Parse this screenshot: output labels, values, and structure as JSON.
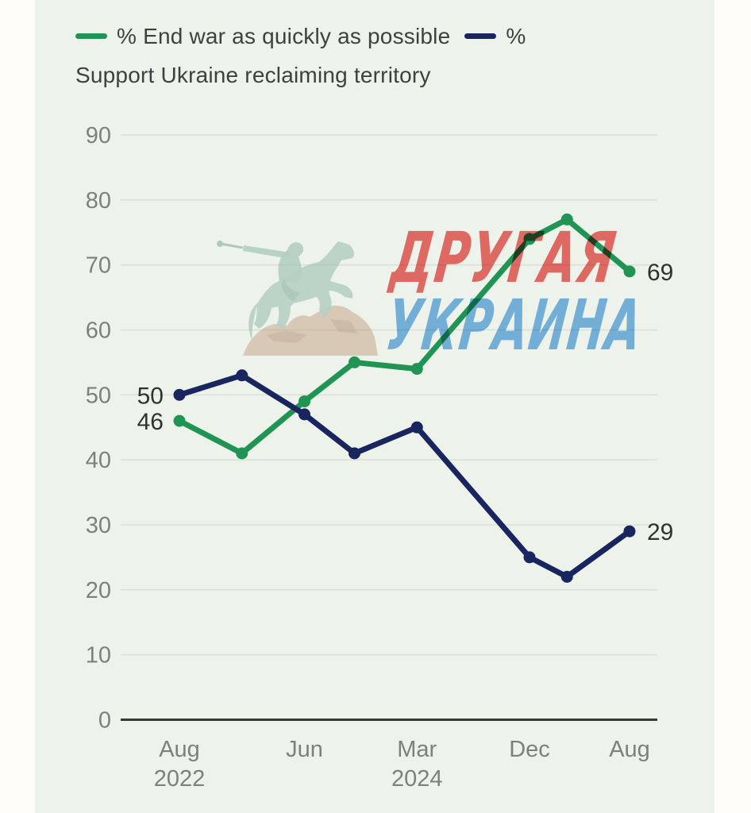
{
  "legend": {
    "series1_label": "% End war as quickly as possible",
    "series2_label": "% Support Ukraine reclaiming territory"
  },
  "watermark": {
    "line1": "ДРУГАЯ",
    "line2": "УКРАИНА",
    "line1_color": "#ef6e6b",
    "line2_color": "#7cb7ea"
  },
  "statue": {
    "name": "bohdan-khmelnytsky-monument-watermark"
  },
  "colors": {
    "page_bg": "#fffdf7",
    "card_bg": "#edf3eb",
    "grid": "#dce1d7",
    "axis": "#343a3c",
    "tick_text": "#7b817b",
    "point_label_text": "#2e332f",
    "legend_text": "#3c4240"
  },
  "chart_data": {
    "type": "line",
    "title": "",
    "xlabel": "",
    "ylabel": "",
    "x_unit": "months since Aug 2022",
    "x": [
      0,
      5,
      10,
      14,
      19,
      28,
      31,
      36
    ],
    "series": [
      {
        "name": "% End war as quickly as possible",
        "color": "#1f9453",
        "values": [
          46,
          41,
          49,
          55,
          54,
          74,
          77,
          69
        ]
      },
      {
        "name": "% Support Ukraine reclaiming territory",
        "color": "#18255f",
        "values": [
          50,
          53,
          47,
          41,
          45,
          25,
          22,
          29
        ]
      }
    ],
    "y_ticks": [
      0,
      10,
      20,
      30,
      40,
      50,
      60,
      70,
      80,
      90
    ],
    "ylim": [
      0,
      90
    ],
    "x_tick_labels": [
      {
        "month": 0,
        "line1": "Aug",
        "line2": "2022"
      },
      {
        "month": 10,
        "line1": "Jun",
        "line2": ""
      },
      {
        "month": 19,
        "line1": "Mar",
        "line2": "2024"
      },
      {
        "month": 28,
        "line1": "Dec",
        "line2": ""
      },
      {
        "month": 36,
        "line1": "Aug",
        "line2": ""
      }
    ],
    "point_labels": [
      {
        "series": 1,
        "index": 0,
        "text": "50",
        "side": "left"
      },
      {
        "series": 0,
        "index": 0,
        "text": "46",
        "side": "left"
      },
      {
        "series": 0,
        "index": 7,
        "text": "69",
        "side": "right"
      },
      {
        "series": 1,
        "index": 7,
        "text": "29",
        "side": "right"
      }
    ],
    "grid": true,
    "legend_position": "top"
  }
}
